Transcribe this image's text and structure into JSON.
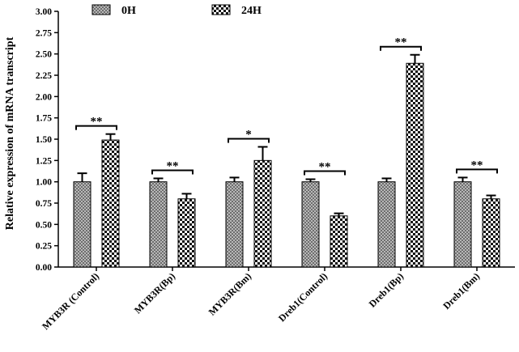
{
  "chart_data": {
    "type": "bar",
    "ylabel": "Relative expression of mRNA transcript",
    "xlabel": "",
    "ylim": [
      0,
      3.0
    ],
    "yticks": [
      "0.00",
      "0.25",
      "0.50",
      "0.75",
      "1.00",
      "1.25",
      "1.50",
      "1.75",
      "2.00",
      "2.25",
      "2.50",
      "2.75",
      "3.00"
    ],
    "categories": [
      "MYB3R (Control)",
      "MYB3R(Bp)",
      "MYB3R(Bm)",
      "Dreb1(Control)",
      "Dreb1(Bp)",
      "Dreb1(Bm)"
    ],
    "series": [
      {
        "name": "0H",
        "values": [
          1.0,
          1.0,
          1.0,
          1.0,
          1.0,
          1.0
        ],
        "errors": [
          0.1,
          0.04,
          0.05,
          0.03,
          0.04,
          0.05
        ]
      },
      {
        "name": "24H",
        "values": [
          1.49,
          0.8,
          1.25,
          0.6,
          2.39,
          0.8
        ],
        "errors": [
          0.07,
          0.06,
          0.16,
          0.03,
          0.1,
          0.04
        ]
      }
    ],
    "significance": [
      "**",
      "**",
      "*",
      "**",
      "**",
      "**"
    ],
    "legend_position": "top",
    "grid": false
  }
}
